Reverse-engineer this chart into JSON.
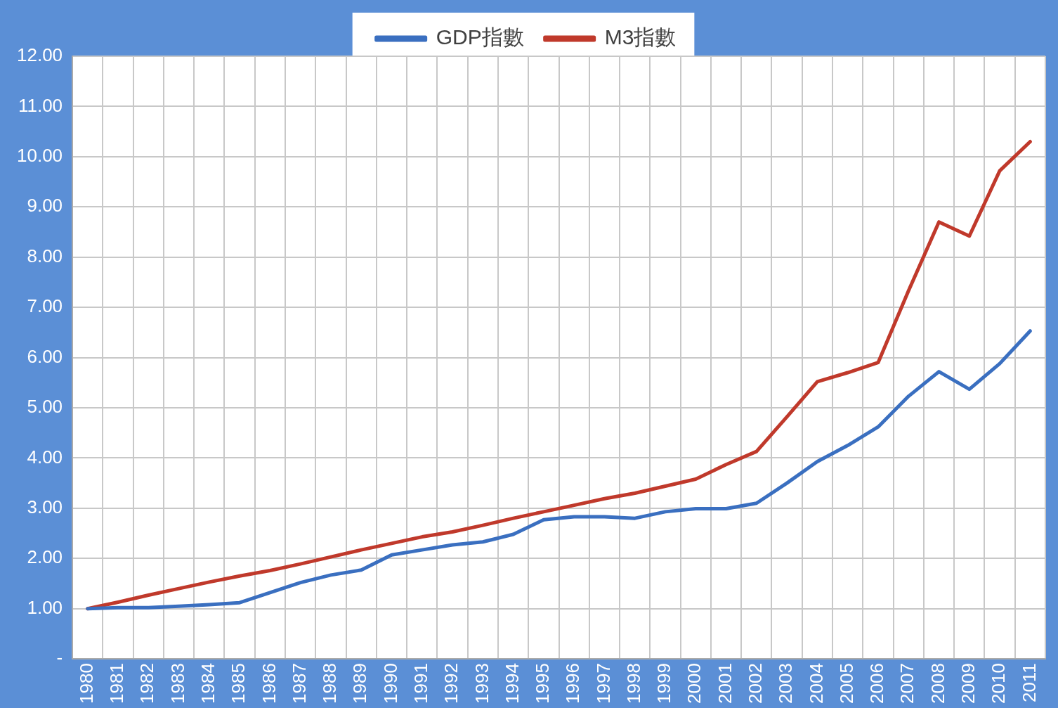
{
  "chart_data": {
    "type": "line",
    "categories": [
      "1980",
      "1981",
      "1982",
      "1983",
      "1984",
      "1985",
      "1986",
      "1987",
      "1988",
      "1989",
      "1990",
      "1991",
      "1992",
      "1993",
      "1994",
      "1995",
      "1996",
      "1997",
      "1998",
      "1999",
      "2000",
      "2001",
      "2002",
      "2003",
      "2004",
      "2005",
      "2006",
      "2007",
      "2008",
      "2009",
      "2010",
      "2011"
    ],
    "series": [
      {
        "name": "GDP指數",
        "color": "#3a6fc0",
        "values": [
          1.0,
          1.02,
          1.02,
          1.05,
          1.08,
          1.12,
          1.32,
          1.52,
          1.67,
          1.77,
          2.07,
          2.17,
          2.27,
          2.33,
          2.48,
          2.77,
          2.83,
          2.83,
          2.8,
          2.93,
          2.99,
          2.99,
          3.1,
          3.5,
          3.93,
          4.25,
          4.62,
          5.23,
          5.72,
          5.37,
          5.88,
          6.53
        ]
      },
      {
        "name": "M3指數",
        "color": "#c0392b",
        "values": [
          1.0,
          1.13,
          1.27,
          1.4,
          1.53,
          1.65,
          1.76,
          1.89,
          2.03,
          2.17,
          2.3,
          2.43,
          2.53,
          2.66,
          2.8,
          2.93,
          3.06,
          3.19,
          3.3,
          3.44,
          3.58,
          3.87,
          4.13,
          4.82,
          5.52,
          5.7,
          5.9,
          7.33,
          8.7,
          8.42,
          9.72,
          10.3
        ]
      }
    ],
    "ylim": [
      0,
      12
    ],
    "yticks": [
      {
        "value": 0,
        "label": "-"
      },
      {
        "value": 1,
        "label": "1.00"
      },
      {
        "value": 2,
        "label": "2.00"
      },
      {
        "value": 3,
        "label": "3.00"
      },
      {
        "value": 4,
        "label": "4.00"
      },
      {
        "value": 5,
        "label": "5.00"
      },
      {
        "value": 6,
        "label": "6.00"
      },
      {
        "value": 7,
        "label": "7.00"
      },
      {
        "value": 8,
        "label": "8.00"
      },
      {
        "value": 9,
        "label": "9.00"
      },
      {
        "value": 10,
        "label": "10.00"
      },
      {
        "value": 11,
        "label": "11.00"
      },
      {
        "value": 12,
        "label": "12.00"
      }
    ],
    "grid": true,
    "legend": "top",
    "marker": "none",
    "line_style": "solid"
  }
}
